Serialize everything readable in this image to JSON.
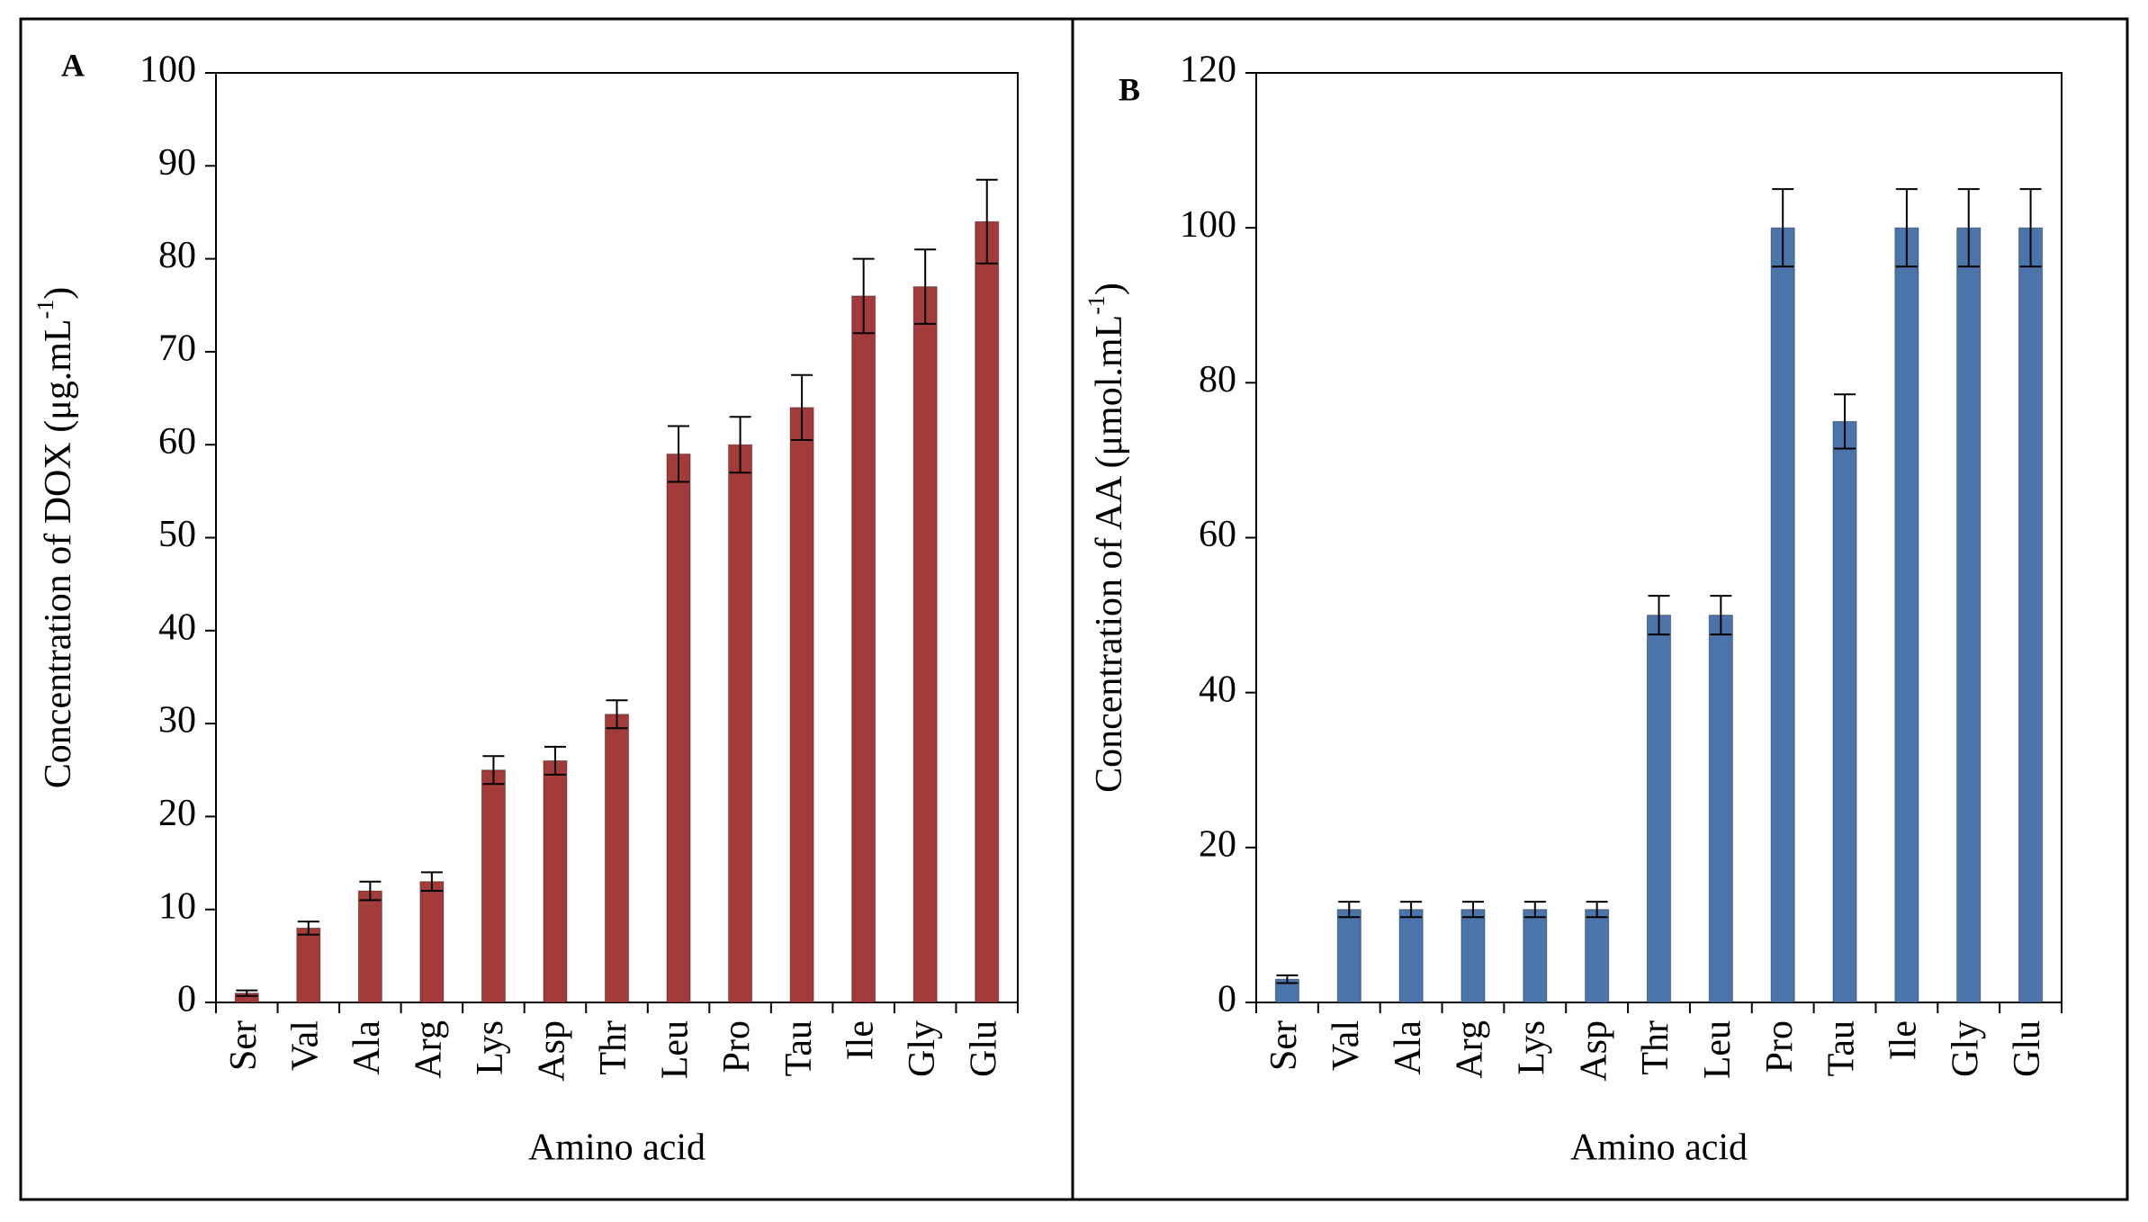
{
  "chart_data": [
    {
      "type": "bar",
      "panel": "A",
      "y_label": [
        "Concentration of DOX (μg.mL",
        "-1",
        ")"
      ],
      "x_label": "Amino acid",
      "categories": [
        "Ser",
        "Val",
        "Ala",
        "Arg",
        "Lys",
        "Asp",
        "Thr",
        "Leu",
        "Pro",
        "Tau",
        "Ile",
        "Gly",
        "Glu"
      ],
      "values": [
        1,
        8,
        12,
        13,
        25,
        26,
        31,
        59,
        60,
        64,
        76,
        77,
        84
      ],
      "errors": [
        0.3,
        0.7,
        1,
        1,
        1.5,
        1.5,
        1.5,
        3,
        3,
        3.5,
        4,
        4,
        4.5
      ],
      "color": "#a33b3b",
      "ylim": [
        0,
        100
      ],
      "yticks": [
        0,
        10,
        20,
        30,
        40,
        50,
        60,
        70,
        80,
        90,
        100
      ]
    },
    {
      "type": "bar",
      "panel": "B",
      "y_label": [
        "Concentration of AA (μmol.mL",
        "-1",
        ")"
      ],
      "x_label": "Amino acid",
      "categories": [
        "Ser",
        "Val",
        "Ala",
        "Arg",
        "Lys",
        "Asp",
        "Thr",
        "Leu",
        "Pro",
        "Tau",
        "Ile",
        "Gly",
        "Glu"
      ],
      "values": [
        3,
        12,
        12,
        12,
        12,
        12,
        50,
        50,
        100,
        75,
        100,
        100,
        100
      ],
      "errors": [
        0.5,
        1,
        1,
        1,
        1,
        1,
        2.5,
        2.5,
        5,
        3.5,
        5,
        5,
        5
      ],
      "color": "#4a74aa",
      "ylim": [
        0,
        120
      ],
      "yticks": [
        0,
        20,
        40,
        60,
        80,
        100,
        120
      ]
    }
  ]
}
